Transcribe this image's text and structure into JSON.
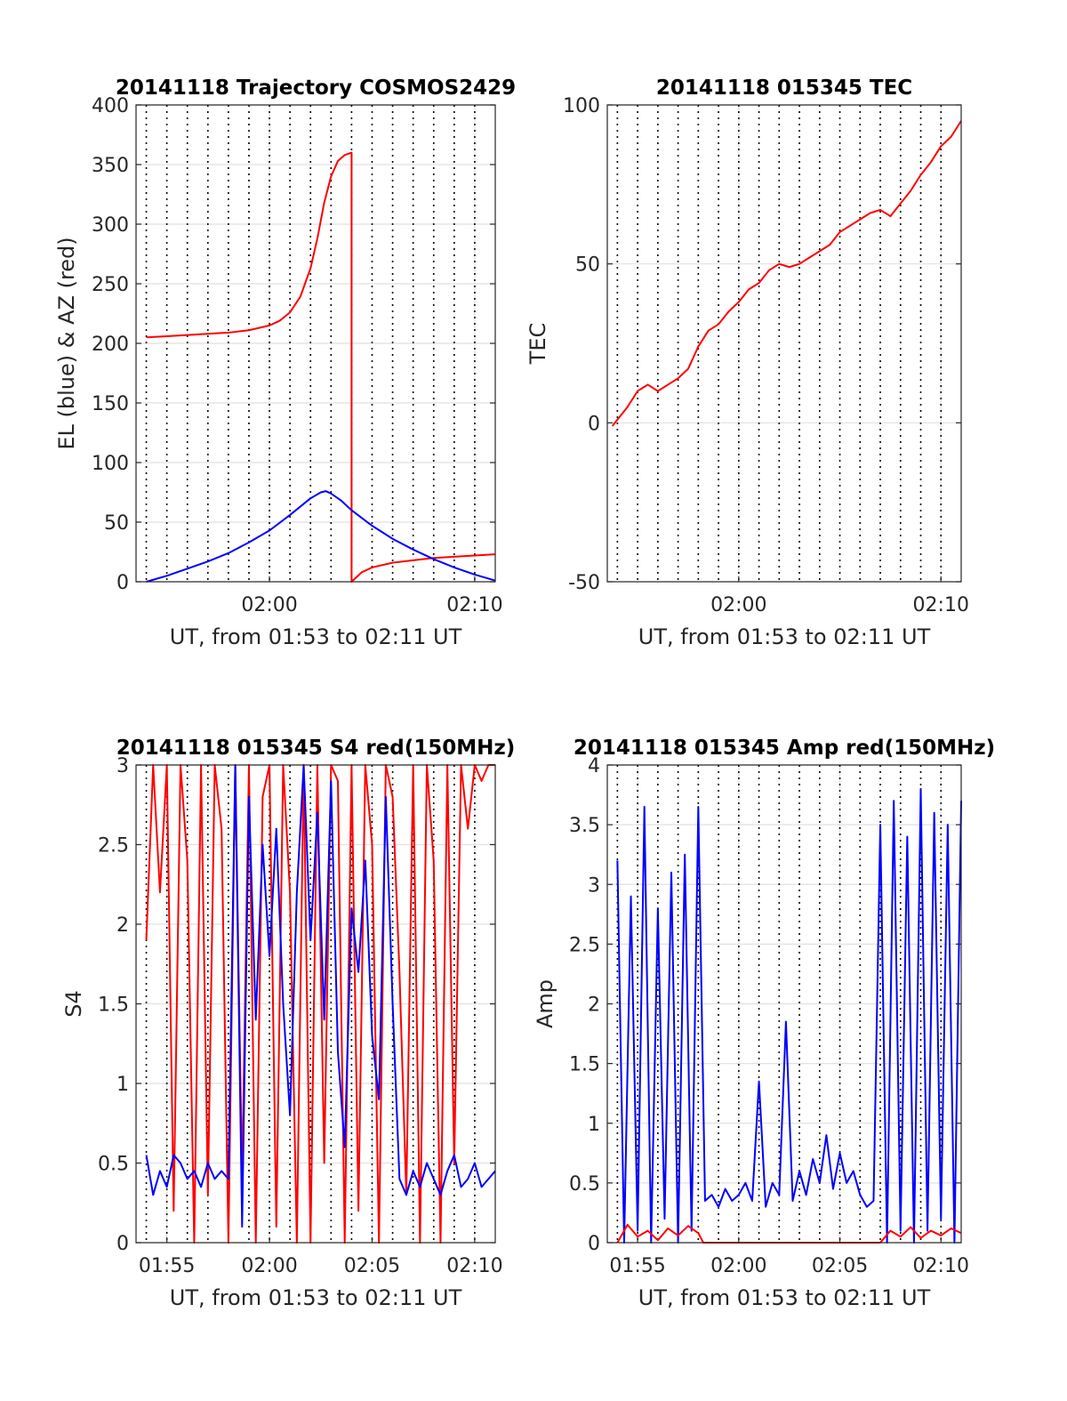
{
  "figure": {
    "background": "#ffffff"
  },
  "chart_data": [
    {
      "type": "line",
      "title": "20141118 Trajectory COSMOS2429",
      "xlabel": "UT, from 01:53 to 02:11 UT",
      "ylabel": "EL (blue) & AZ (red)",
      "xlim": [
        "01:53:30",
        "02:11:00"
      ],
      "ylim": [
        0,
        400
      ],
      "yticks": [
        0,
        50,
        100,
        150,
        200,
        250,
        300,
        350,
        400
      ],
      "xtick_labels": [
        {
          "x": "02:00",
          "label": "02:00"
        },
        {
          "x": "02:10",
          "label": "02:10"
        }
      ],
      "vlines_dotted": [
        "01:54",
        "01:55",
        "01:56",
        "01:57",
        "01:58",
        "01:59",
        "02:00",
        "02:01",
        "02:02",
        "02:03",
        "02:04",
        "02:05",
        "02:06",
        "02:07",
        "02:08",
        "02:09",
        "02:10"
      ],
      "grid": true,
      "series": [
        {
          "color": "#ff0000",
          "x": [
            "01:54:00",
            "01:55:00",
            "01:56:00",
            "01:57:00",
            "01:58:00",
            "01:59:00",
            "02:00:00",
            "02:00:30",
            "02:01:00",
            "02:01:30",
            "02:02:00",
            "02:02:20",
            "02:02:40",
            "02:03:00",
            "02:03:20",
            "02:03:40",
            "02:03:50",
            "02:04:00",
            "02:04:00",
            "02:04:30",
            "02:05:00",
            "02:06:00",
            "02:07:00",
            "02:08:00",
            "02:09:00",
            "02:10:00",
            "02:11:00"
          ],
          "values": [
            205,
            206,
            207,
            208,
            209,
            211,
            215,
            219,
            226,
            239,
            263,
            288,
            318,
            340,
            353,
            358,
            359,
            360,
            0,
            8,
            12,
            16,
            18,
            20,
            21,
            22,
            23
          ]
        },
        {
          "color": "#0000ff",
          "x": [
            "01:54:00",
            "01:55:00",
            "01:56:00",
            "01:57:00",
            "01:58:00",
            "01:59:00",
            "02:00:00",
            "02:01:00",
            "02:02:00",
            "02:02:30",
            "02:02:45",
            "02:03:00",
            "02:03:30",
            "02:04:00",
            "02:05:00",
            "02:06:00",
            "02:07:00",
            "02:08:00",
            "02:09:00",
            "02:10:00",
            "02:11:00"
          ],
          "values": [
            0,
            5,
            11,
            17,
            24,
            33,
            43,
            56,
            70,
            75,
            76,
            74,
            68,
            60,
            47,
            36,
            27,
            19,
            12,
            6,
            1
          ]
        }
      ]
    },
    {
      "type": "line",
      "title": "20141118 015345 TEC",
      "xlabel": "UT, from 01:53 to 02:11 UT",
      "ylabel": "TEC",
      "xlim": [
        "01:53:30",
        "02:11:00"
      ],
      "ylim": [
        -50,
        100
      ],
      "yticks": [
        -50,
        0,
        50,
        100
      ],
      "xtick_labels": [
        {
          "x": "02:00",
          "label": "02:00"
        },
        {
          "x": "02:10",
          "label": "02:10"
        }
      ],
      "vlines_dotted": [
        "01:54",
        "01:55",
        "01:56",
        "01:57",
        "01:58",
        "01:59",
        "02:00",
        "02:01",
        "02:02",
        "02:03",
        "02:04",
        "02:05",
        "02:06",
        "02:07",
        "02:08",
        "02:09",
        "02:10"
      ],
      "grid": true,
      "series": [
        {
          "color": "#ff0000",
          "x": [
            "01:53:45",
            "01:54:30",
            "01:55:00",
            "01:55:30",
            "01:56:00",
            "01:56:30",
            "01:57:00",
            "01:57:30",
            "01:58:00",
            "01:58:30",
            "01:59:00",
            "01:59:30",
            "02:00:00",
            "02:00:30",
            "02:01:00",
            "02:01:30",
            "02:02:00",
            "02:02:30",
            "02:03:00",
            "02:03:30",
            "02:04:00",
            "02:04:30",
            "02:05:00",
            "02:05:30",
            "02:06:00",
            "02:06:30",
            "02:07:00",
            "02:07:30",
            "02:08:00",
            "02:08:30",
            "02:09:00",
            "02:09:30",
            "02:10:00",
            "02:10:30",
            "02:11:00"
          ],
          "values": [
            -1,
            5,
            10,
            12,
            10,
            12,
            14,
            17,
            24,
            29,
            31,
            35,
            38,
            42,
            44,
            48,
            50,
            49,
            50,
            52,
            54,
            56,
            60,
            62,
            64,
            66,
            67,
            65,
            69,
            73,
            78,
            82,
            87,
            90,
            95
          ]
        }
      ]
    },
    {
      "type": "line",
      "title": "20141118 015345 S4 red(150MHz)",
      "xlabel": "UT, from 01:53 to 02:11 UT",
      "ylabel": "S4",
      "xlim": [
        "01:53:30",
        "02:11:00"
      ],
      "ylim": [
        0,
        3
      ],
      "yticks": [
        0,
        0.5,
        1,
        1.5,
        2,
        2.5,
        3
      ],
      "ytick_labels": [
        "0",
        "0.5",
        "1",
        "1.5",
        "2",
        "2.5",
        "3"
      ],
      "xtick_labels": [
        {
          "x": "01:55",
          "label": "01:55"
        },
        {
          "x": "02:00",
          "label": "02:00"
        },
        {
          "x": "02:05",
          "label": "02:05"
        },
        {
          "x": "02:10",
          "label": "02:10"
        }
      ],
      "vlines_dotted": [
        "01:54",
        "01:55",
        "01:56",
        "01:57",
        "01:58",
        "01:59",
        "02:00",
        "02:01",
        "02:02",
        "02:03",
        "02:04",
        "02:05",
        "02:06",
        "02:07",
        "02:08",
        "02:09",
        "02:10"
      ],
      "grid": true,
      "series": [
        {
          "color": "#ff0000",
          "x": [
            "01:54:00",
            "01:54:20",
            "01:54:40",
            "01:55:00",
            "01:55:20",
            "01:55:40",
            "01:56:00",
            "01:56:20",
            "01:56:40",
            "01:57:00",
            "01:57:20",
            "01:57:40",
            "01:58:00",
            "01:58:20",
            "01:58:40",
            "01:59:00",
            "01:59:20",
            "01:59:40",
            "02:00:00",
            "02:00:20",
            "02:00:40",
            "02:01:00",
            "02:01:20",
            "02:01:40",
            "02:02:00",
            "02:02:20",
            "02:02:40",
            "02:03:00",
            "02:03:20",
            "02:03:40",
            "02:04:00",
            "02:04:20",
            "02:04:40",
            "02:05:00",
            "02:05:20",
            "02:05:40",
            "02:06:00",
            "02:06:20",
            "02:06:40",
            "02:07:00",
            "02:07:20",
            "02:07:40",
            "02:08:00",
            "02:08:20",
            "02:08:40",
            "02:09:00",
            "02:09:20",
            "02:09:40",
            "02:10:00",
            "02:10:20",
            "02:10:40",
            "02:11:00"
          ],
          "values": [
            1.9,
            3,
            2.2,
            3,
            0.2,
            3,
            2.4,
            0,
            3,
            0.3,
            3,
            2.6,
            0,
            3,
            0.4,
            3,
            0,
            2.8,
            3,
            0.1,
            3,
            2.2,
            0,
            3,
            0,
            3,
            0.5,
            3,
            2.9,
            0,
            3,
            0.2,
            3,
            2.5,
            0,
            3,
            2.8,
            1.7,
            0.3,
            3,
            0,
            3,
            2.4,
            0,
            3,
            0.5,
            3,
            2.6,
            3,
            2.9,
            3,
            3
          ]
        },
        {
          "color": "#0000ff",
          "x": [
            "01:54:00",
            "01:54:20",
            "01:54:40",
            "01:55:00",
            "01:55:20",
            "01:55:40",
            "01:56:00",
            "01:56:20",
            "01:56:40",
            "01:57:00",
            "01:57:20",
            "01:57:40",
            "01:58:00",
            "01:58:20",
            "01:58:40",
            "01:59:00",
            "01:59:20",
            "01:59:40",
            "02:00:00",
            "02:00:20",
            "02:00:40",
            "02:01:00",
            "02:01:20",
            "02:01:40",
            "02:02:00",
            "02:02:20",
            "02:02:40",
            "02:03:00",
            "02:03:20",
            "02:03:40",
            "02:04:00",
            "02:04:20",
            "02:04:40",
            "02:05:00",
            "02:05:20",
            "02:05:40",
            "02:06:00",
            "02:06:20",
            "02:06:40",
            "02:07:00",
            "02:07:20",
            "02:07:40",
            "02:08:00",
            "02:08:20",
            "02:08:40",
            "02:09:00",
            "02:09:20",
            "02:09:40",
            "02:10:00",
            "02:10:20",
            "02:10:40",
            "02:11:00"
          ],
          "values": [
            0.55,
            0.3,
            0.45,
            0.35,
            0.55,
            0.5,
            0.4,
            0.45,
            0.35,
            0.5,
            0.4,
            0.45,
            0.4,
            3,
            0.1,
            2.8,
            1.4,
            2.5,
            1.8,
            2.6,
            1.5,
            0.8,
            2.2,
            3,
            1.9,
            2.7,
            1.4,
            2.9,
            1.2,
            0.6,
            2.1,
            1.7,
            2.4,
            1.3,
            0.9,
            2.8,
            1.5,
            0.4,
            0.3,
            0.45,
            0.35,
            0.5,
            0.4,
            0.3,
            0.45,
            0.55,
            0.35,
            0.4,
            0.5,
            0.35,
            0.4,
            0.45
          ]
        }
      ]
    },
    {
      "type": "line",
      "title": "20141118 015345 Amp red(150MHz)",
      "xlabel": "UT, from 01:53 to 02:11 UT",
      "ylabel": "Amp",
      "xlim": [
        "01:53:30",
        "02:11:00"
      ],
      "ylim": [
        0,
        4
      ],
      "yticks": [
        0,
        0.5,
        1,
        1.5,
        2,
        2.5,
        3,
        3.5,
        4
      ],
      "ytick_labels": [
        "0",
        "0.5",
        "1",
        "1.5",
        "2",
        "2.5",
        "3",
        "3.5",
        "4"
      ],
      "xtick_labels": [
        {
          "x": "01:55",
          "label": "01:55"
        },
        {
          "x": "02:00",
          "label": "02:00"
        },
        {
          "x": "02:05",
          "label": "02:05"
        },
        {
          "x": "02:10",
          "label": "02:10"
        }
      ],
      "vlines_dotted": [
        "01:54",
        "01:55",
        "01:56",
        "01:57",
        "01:58",
        "01:59",
        "02:00",
        "02:01",
        "02:02",
        "02:03",
        "02:04",
        "02:05",
        "02:06",
        "02:07",
        "02:08",
        "02:09",
        "02:10"
      ],
      "grid": true,
      "series": [
        {
          "color": "#0000ff",
          "x": [
            "01:54:00",
            "01:54:20",
            "01:54:40",
            "01:55:00",
            "01:55:20",
            "01:55:40",
            "01:56:00",
            "01:56:20",
            "01:56:40",
            "01:57:00",
            "01:57:20",
            "01:57:40",
            "01:58:00",
            "01:58:20",
            "01:58:40",
            "01:59:00",
            "01:59:20",
            "01:59:40",
            "02:00:00",
            "02:00:20",
            "02:00:40",
            "02:01:00",
            "02:01:20",
            "02:01:40",
            "02:02:00",
            "02:02:20",
            "02:02:40",
            "02:03:00",
            "02:03:20",
            "02:03:40",
            "02:04:00",
            "02:04:20",
            "02:04:40",
            "02:05:00",
            "02:05:20",
            "02:05:40",
            "02:06:00",
            "02:06:20",
            "02:06:40",
            "02:07:00",
            "02:07:20",
            "02:07:40",
            "02:08:00",
            "02:08:20",
            "02:08:40",
            "02:09:00",
            "02:09:20",
            "02:09:40",
            "02:10:00",
            "02:10:20",
            "02:10:40",
            "02:11:00"
          ],
          "values": [
            3.2,
            0,
            2.9,
            0.1,
            3.65,
            0,
            2.8,
            0.2,
            3.1,
            0,
            3.25,
            0.1,
            3.65,
            0.35,
            0.4,
            0.3,
            0.45,
            0.35,
            0.4,
            0.5,
            0.35,
            1.35,
            0.3,
            0.5,
            0.4,
            1.85,
            0.35,
            0.6,
            0.4,
            0.7,
            0.5,
            0.9,
            0.45,
            0.75,
            0.5,
            0.6,
            0.4,
            0.3,
            0.35,
            3.5,
            0,
            3.7,
            0.1,
            3.4,
            0,
            3.8,
            0.1,
            3.6,
            0.2,
            3.5,
            0,
            3.7
          ]
        },
        {
          "color": "#ff0000",
          "x": [
            "01:54:00",
            "01:54:30",
            "01:55:00",
            "01:55:30",
            "01:56:00",
            "01:56:30",
            "01:57:00",
            "01:57:30",
            "01:58:00",
            "01:58:15",
            "02:07:00",
            "02:07:30",
            "02:08:00",
            "02:08:30",
            "02:09:00",
            "02:09:30",
            "02:10:00",
            "02:10:30",
            "02:11:00"
          ],
          "values": [
            0,
            0.15,
            0.05,
            0.1,
            0.02,
            0.12,
            0.06,
            0.14,
            0.08,
            0,
            0,
            0.1,
            0.05,
            0.13,
            0.04,
            0.1,
            0.06,
            0.12,
            0.08
          ]
        }
      ]
    }
  ]
}
